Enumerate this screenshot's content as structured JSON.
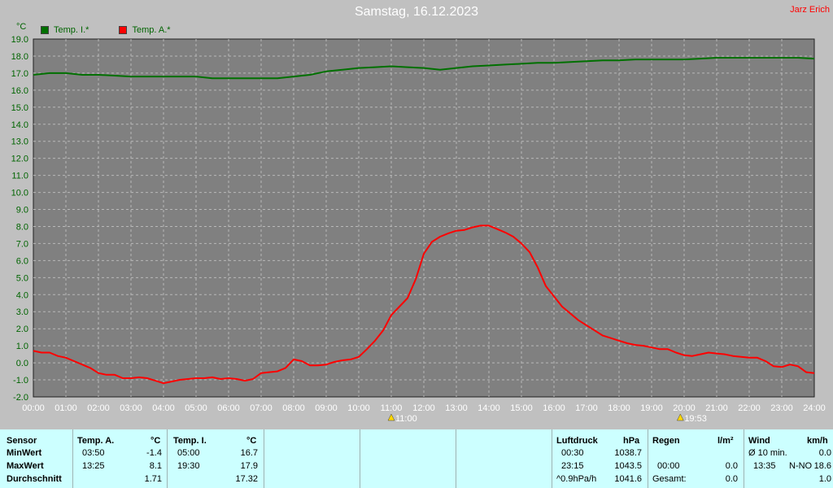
{
  "title": "Samstag, 16.12.2023",
  "author": "Jarz Erich",
  "unit": "°C",
  "legend": [
    {
      "label": "Temp. I.*",
      "color": "#007000"
    },
    {
      "label": "Temp. A.*",
      "color": "#ff0000"
    }
  ],
  "chart_data": {
    "type": "line",
    "title": "Samstag, 16.12.2023",
    "ylabel": "°C",
    "ylim": [
      -2.0,
      19.0
    ],
    "yticks": [
      "-2.0",
      "-1.0",
      "0.0",
      "1.0",
      "2.0",
      "3.0",
      "4.0",
      "5.0",
      "6.0",
      "7.0",
      "8.0",
      "9.0",
      "10.0",
      "11.0",
      "12.0",
      "13.0",
      "14.0",
      "15.0",
      "16.0",
      "17.0",
      "18.0",
      "19.0"
    ],
    "xlim": [
      0,
      24
    ],
    "xticks": [
      "00:00",
      "01:00",
      "02:00",
      "03:00",
      "04:00",
      "05:00",
      "06:00",
      "07:00",
      "08:00",
      "09:00",
      "10:00",
      "11:00",
      "12:00",
      "13:00",
      "14:00",
      "15:00",
      "16:00",
      "17:00",
      "18:00",
      "19:00",
      "20:00",
      "21:00",
      "22:00",
      "23:00",
      "24:00"
    ],
    "grid": true,
    "legend_position": "top-left",
    "series": [
      {
        "name": "Temp. I.*",
        "color": "#007000",
        "x": [
          0,
          0.5,
          1,
          1.5,
          2,
          2.5,
          3,
          3.5,
          4,
          4.5,
          5,
          5.5,
          6,
          6.5,
          7,
          7.5,
          8,
          8.5,
          9,
          9.5,
          10,
          10.5,
          11,
          11.5,
          12,
          12.5,
          13,
          13.5,
          14,
          14.5,
          15,
          15.5,
          16,
          16.5,
          17,
          17.5,
          18,
          18.5,
          19,
          19.5,
          20,
          20.5,
          21,
          21.5,
          22,
          22.5,
          23,
          23.5,
          24
        ],
        "y": [
          16.9,
          17.0,
          17.0,
          16.9,
          16.9,
          16.85,
          16.8,
          16.8,
          16.8,
          16.8,
          16.8,
          16.7,
          16.7,
          16.7,
          16.7,
          16.7,
          16.8,
          16.9,
          17.1,
          17.2,
          17.3,
          17.35,
          17.4,
          17.35,
          17.3,
          17.2,
          17.3,
          17.4,
          17.45,
          17.5,
          17.55,
          17.6,
          17.6,
          17.65,
          17.7,
          17.75,
          17.75,
          17.8,
          17.8,
          17.8,
          17.8,
          17.85,
          17.9,
          17.9,
          17.9,
          17.9,
          17.9,
          17.9,
          17.85
        ]
      },
      {
        "name": "Temp. A.*",
        "color": "#ff0000",
        "x": [
          0,
          0.25,
          0.5,
          0.75,
          1,
          1.25,
          1.5,
          1.75,
          2,
          2.25,
          2.5,
          2.75,
          3,
          3.25,
          3.5,
          3.75,
          4,
          4.25,
          4.5,
          4.75,
          5,
          5.25,
          5.5,
          5.75,
          6,
          6.25,
          6.5,
          6.75,
          7,
          7.25,
          7.5,
          7.75,
          8,
          8.25,
          8.5,
          8.75,
          9,
          9.25,
          9.5,
          9.75,
          10,
          10.25,
          10.5,
          10.75,
          11,
          11.25,
          11.5,
          11.75,
          12,
          12.25,
          12.5,
          12.75,
          13,
          13.25,
          13.5,
          13.75,
          14,
          14.25,
          14.5,
          14.75,
          15,
          15.25,
          15.5,
          15.75,
          16,
          16.25,
          16.5,
          16.75,
          17,
          17.25,
          17.5,
          17.75,
          18,
          18.25,
          18.5,
          18.75,
          19,
          19.25,
          19.5,
          19.75,
          20,
          20.25,
          20.5,
          20.75,
          21,
          21.25,
          21.5,
          21.75,
          22,
          22.25,
          22.5,
          22.75,
          23,
          23.25,
          23.5,
          23.75,
          24
        ],
        "y": [
          0.7,
          0.6,
          0.6,
          0.4,
          0.3,
          0.1,
          -0.1,
          -0.3,
          -0.6,
          -0.7,
          -0.7,
          -0.9,
          -0.9,
          -0.85,
          -0.9,
          -1.05,
          -1.2,
          -1.1,
          -1.0,
          -0.95,
          -0.9,
          -0.9,
          -0.85,
          -0.95,
          -0.9,
          -0.95,
          -1.05,
          -0.95,
          -0.6,
          -0.55,
          -0.5,
          -0.3,
          0.2,
          0.1,
          -0.15,
          -0.15,
          -0.1,
          0.05,
          0.15,
          0.2,
          0.35,
          0.8,
          1.3,
          1.9,
          2.8,
          3.3,
          3.8,
          4.9,
          6.4,
          7.1,
          7.4,
          7.6,
          7.75,
          7.8,
          7.95,
          8.05,
          8.05,
          7.85,
          7.65,
          7.4,
          7.0,
          6.5,
          5.6,
          4.5,
          3.9,
          3.3,
          2.9,
          2.5,
          2.2,
          1.9,
          1.6,
          1.45,
          1.3,
          1.15,
          1.05,
          1.0,
          0.9,
          0.8,
          0.8,
          0.6,
          0.45,
          0.4,
          0.5,
          0.6,
          0.55,
          0.5,
          0.4,
          0.35,
          0.3,
          0.3,
          0.1,
          -0.2,
          -0.25,
          -0.1,
          -0.2,
          -0.55,
          -0.6
        ]
      }
    ],
    "annotations": [
      {
        "label": "11:00",
        "x": 11.0
      },
      {
        "label": "19:53",
        "x": 19.883
      }
    ]
  },
  "summary": {
    "headers": {
      "sensor": "Sensor",
      "temp_a": "Temp. A.",
      "temp_a_unit": "°C",
      "temp_i": "Temp. I.",
      "temp_i_unit": "°C",
      "pressure": "Luftdruck",
      "pressure_unit": "hPa",
      "rain": "Regen",
      "rain_unit": "l/m²",
      "wind": "Wind",
      "wind_unit": "km/h"
    },
    "rows": [
      {
        "label": "MinWert",
        "ta_time": "03:50",
        "ta_val": "-1.4",
        "ti_time": "05:00",
        "ti_val": "16.7",
        "p_time": "00:30",
        "p_val": "1038.7",
        "r_time": "",
        "r_val": "",
        "w_time": "Ø 10 min.",
        "w_dir": "",
        "w_val": "0.0"
      },
      {
        "label": "MaxWert",
        "ta_time": "13:25",
        "ta_val": "8.1",
        "ti_time": "19:30",
        "ti_val": "17.9",
        "p_time": "23:15",
        "p_val": "1043.5",
        "r_time": "00:00",
        "r_val": "0.0",
        "w_time": "13:35",
        "w_dir": "N-NO",
        "w_val": "18.6"
      },
      {
        "label": "Durchschnitt",
        "ta_time": "",
        "ta_val": "1.71",
        "ti_time": "",
        "ti_val": "17.32",
        "p_time": "^0.9hPa/h",
        "p_val": "1041.6",
        "r_time": "Gesamt:",
        "r_val": "0.0",
        "w_time": "",
        "w_dir": "",
        "w_val": "1.0"
      }
    ]
  }
}
